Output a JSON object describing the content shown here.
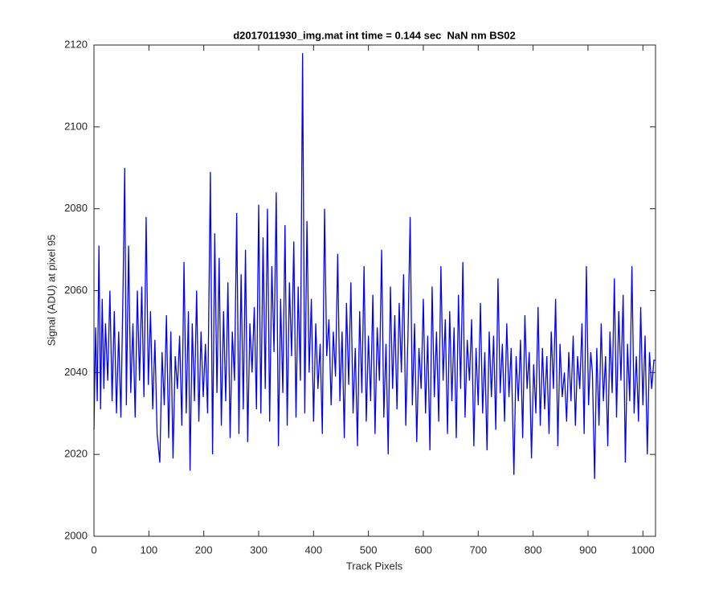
{
  "chart_data": {
    "type": "line",
    "title": "d2017011930_img.mat int time = 0.144 sec  NaN nm BS02",
    "x_label": "Track Pixels",
    "y_label": "Signal (ADU) at pixel 95",
    "color": "#0000ff",
    "xlim": [
      0,
      1023
    ],
    "ylim": [
      2000,
      2120
    ],
    "xticks": [
      0,
      100,
      200,
      300,
      400,
      500,
      600,
      700,
      800,
      900,
      1000
    ],
    "yticks": [
      2000,
      2020,
      2040,
      2060,
      2080,
      2100,
      2120
    ],
    "x": [
      0,
      3,
      6,
      9,
      12,
      15,
      18,
      21,
      25,
      29,
      33,
      37,
      41,
      45,
      49,
      53,
      56,
      59,
      63,
      67,
      71,
      75,
      79,
      83,
      87,
      91,
      95,
      99,
      103,
      107,
      111,
      115,
      120,
      124,
      128,
      132,
      136,
      140,
      144,
      148,
      152,
      156,
      160,
      164,
      168,
      172,
      175,
      179,
      183,
      187,
      191,
      195,
      199,
      203,
      207,
      212,
      216,
      220,
      224,
      228,
      232,
      236,
      240,
      244,
      248,
      252,
      256,
      260,
      264,
      268,
      272,
      276,
      280,
      284,
      288,
      292,
      296,
      300,
      304,
      308,
      312,
      316,
      320,
      324,
      328,
      332,
      336,
      340,
      344,
      348,
      352,
      356,
      360,
      364,
      368,
      372,
      376,
      380,
      384,
      388,
      392,
      396,
      400,
      404,
      408,
      412,
      416,
      420,
      424,
      428,
      432,
      436,
      440,
      444,
      448,
      452,
      456,
      460,
      464,
      468,
      472,
      476,
      480,
      484,
      488,
      492,
      496,
      500,
      504,
      508,
      512,
      516,
      520,
      524,
      528,
      532,
      536,
      540,
      544,
      548,
      552,
      556,
      560,
      564,
      568,
      572,
      576,
      580,
      584,
      588,
      592,
      596,
      600,
      604,
      608,
      612,
      616,
      620,
      624,
      628,
      632,
      636,
      640,
      644,
      648,
      652,
      656,
      660,
      664,
      668,
      672,
      676,
      680,
      684,
      688,
      692,
      696,
      700,
      704,
      708,
      712,
      716,
      720,
      724,
      728,
      732,
      736,
      740,
      744,
      748,
      752,
      756,
      760,
      765,
      769,
      773,
      777,
      781,
      785,
      789,
      793,
      797,
      801,
      805,
      809,
      813,
      817,
      821,
      825,
      829,
      833,
      837,
      841,
      845,
      849,
      853,
      857,
      861,
      865,
      869,
      873,
      877,
      881,
      885,
      889,
      893,
      897,
      901,
      905,
      908,
      912,
      916,
      920,
      924,
      928,
      932,
      936,
      940,
      944,
      948,
      952,
      956,
      960,
      964,
      968,
      972,
      976,
      980,
      984,
      988,
      992,
      996,
      1000,
      1004,
      1008,
      1012,
      1016,
      1020,
      1023
    ],
    "values": [
      2026,
      2051,
      2033,
      2071,
      2031,
      2058,
      2036,
      2052,
      2038,
      2060,
      2033,
      2055,
      2030,
      2050,
      2029,
      2061,
      2090,
      2032,
      2071,
      2035,
      2052,
      2029,
      2060,
      2038,
      2061,
      2034,
      2078,
      2037,
      2055,
      2031,
      2048,
      2025,
      2018,
      2045,
      2032,
      2054,
      2024,
      2050,
      2019,
      2044,
      2036,
      2049,
      2027,
      2067,
      2030,
      2055,
      2016,
      2052,
      2033,
      2060,
      2028,
      2050,
      2034,
      2047,
      2030,
      2089,
      2020,
      2074,
      2035,
      2068,
      2027,
      2055,
      2033,
      2062,
      2024,
      2050,
      2038,
      2079,
      2025,
      2064,
      2031,
      2070,
      2023,
      2052,
      2040,
      2056,
      2031,
      2081,
      2030,
      2073,
      2036,
      2080,
      2028,
      2066,
      2045,
      2084,
      2022,
      2058,
      2035,
      2076,
      2027,
      2062,
      2044,
      2072,
      2029,
      2061,
      2038,
      2118,
      2030,
      2077,
      2040,
      2058,
      2028,
      2052,
      2036,
      2047,
      2025,
      2080,
      2044,
      2053,
      2032,
      2050,
      2039,
      2069,
      2033,
      2050,
      2024,
      2057,
      2037,
      2062,
      2030,
      2046,
      2022,
      2055,
      2035,
      2066,
      2028,
      2049,
      2033,
      2059,
      2025,
      2051,
      2038,
      2070,
      2029,
      2047,
      2020,
      2061,
      2036,
      2054,
      2031,
      2057,
      2040,
      2064,
      2027,
      2049,
      2078,
      2032,
      2052,
      2023,
      2046,
      2036,
      2058,
      2030,
      2049,
      2021,
      2061,
      2034,
      2050,
      2028,
      2066,
      2038,
      2053,
      2025,
      2055,
      2033,
      2051,
      2024,
      2059,
      2036,
      2067,
      2029,
      2048,
      2038,
      2053,
      2022,
      2046,
      2032,
      2057,
      2030,
      2045,
      2021,
      2050,
      2034,
      2049,
      2026,
      2063,
      2035,
      2047,
      2028,
      2052,
      2034,
      2046,
      2015,
      2044,
      2033,
      2048,
      2024,
      2054,
      2036,
      2045,
      2019,
      2042,
      2030,
      2056,
      2027,
      2046,
      2031,
      2044,
      2025,
      2050,
      2036,
      2058,
      2022,
      2047,
      2034,
      2040,
      2028,
      2045,
      2033,
      2049,
      2027,
      2044,
      2036,
      2052,
      2025,
      2066,
      2032,
      2045,
      2040,
      2014,
      2046,
      2027,
      2052,
      2033,
      2044,
      2022,
      2050,
      2035,
      2063,
      2029,
      2055,
      2038,
      2059,
      2018,
      2047,
      2033,
      2066,
      2030,
      2044,
      2028,
      2056,
      2032,
      2049,
      2020,
      2045,
      2036,
      2043,
      2043
    ]
  }
}
